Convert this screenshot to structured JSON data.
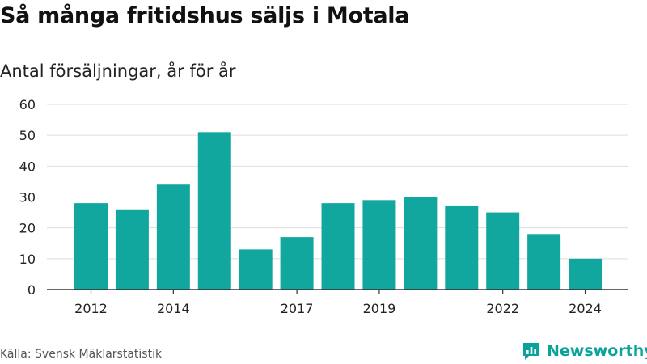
{
  "title": "Så många fritidshus säljs i Motala",
  "subtitle": "Antal försäljningar, år för år",
  "source": "Källa: Svensk Mäklarstatistik",
  "brand": "Newsworthy",
  "colors": {
    "bar": "#11a79f",
    "grid": "#dddddd",
    "axis": "#333333",
    "brand": "#0aa39a"
  },
  "chart_data": {
    "type": "bar",
    "categories": [
      "2012",
      "2013",
      "2014",
      "2015",
      "2016",
      "2017",
      "2018",
      "2019",
      "2020",
      "2021",
      "2022",
      "2023",
      "2024"
    ],
    "values": [
      28,
      26,
      34,
      51,
      13,
      17,
      28,
      29,
      30,
      27,
      25,
      18,
      10
    ],
    "x_tick_labels": [
      "2012",
      "2014",
      "2017",
      "2019",
      "2022",
      "2024"
    ],
    "y_ticks": [
      0,
      10,
      20,
      30,
      40,
      50,
      60
    ],
    "ylim": [
      0,
      60
    ],
    "grid": true,
    "legend": "none"
  }
}
